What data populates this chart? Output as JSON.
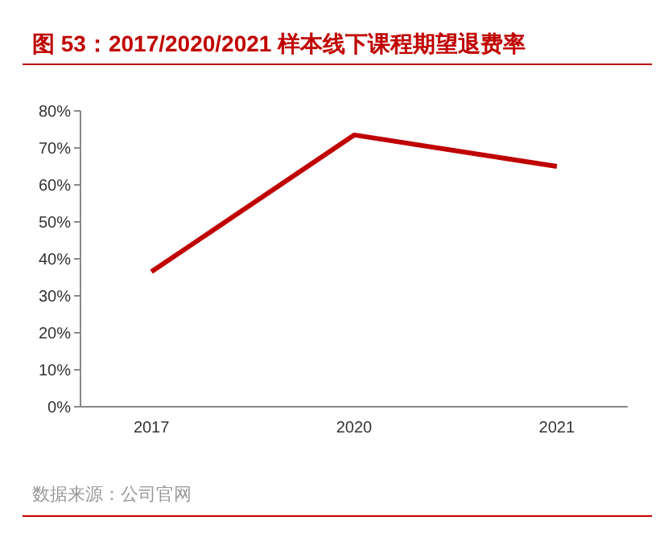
{
  "chart_data": {
    "type": "line",
    "title": "图 53：2017/2020/2021 样本线下课程期望退费率",
    "categories": [
      "2017",
      "2020",
      "2021"
    ],
    "series": [
      {
        "color": "#c00000",
        "values": [
          36.5,
          73.5,
          65
        ]
      }
    ],
    "ylim": [
      0,
      80
    ],
    "yticks": [
      {
        "value": 0,
        "label": "0%"
      },
      {
        "value": 10,
        "label": "10%"
      },
      {
        "value": 20,
        "label": "20%"
      },
      {
        "value": 30,
        "label": "30%"
      },
      {
        "value": 40,
        "label": "40%"
      },
      {
        "value": 50,
        "label": "50%"
      },
      {
        "value": 60,
        "label": "60%"
      },
      {
        "value": 70,
        "label": "70%"
      },
      {
        "value": 80,
        "label": "80%"
      }
    ],
    "grid": false,
    "marker": "none",
    "line_style": "solid",
    "annotations": [
      "数据来源：公司官网"
    ]
  }
}
